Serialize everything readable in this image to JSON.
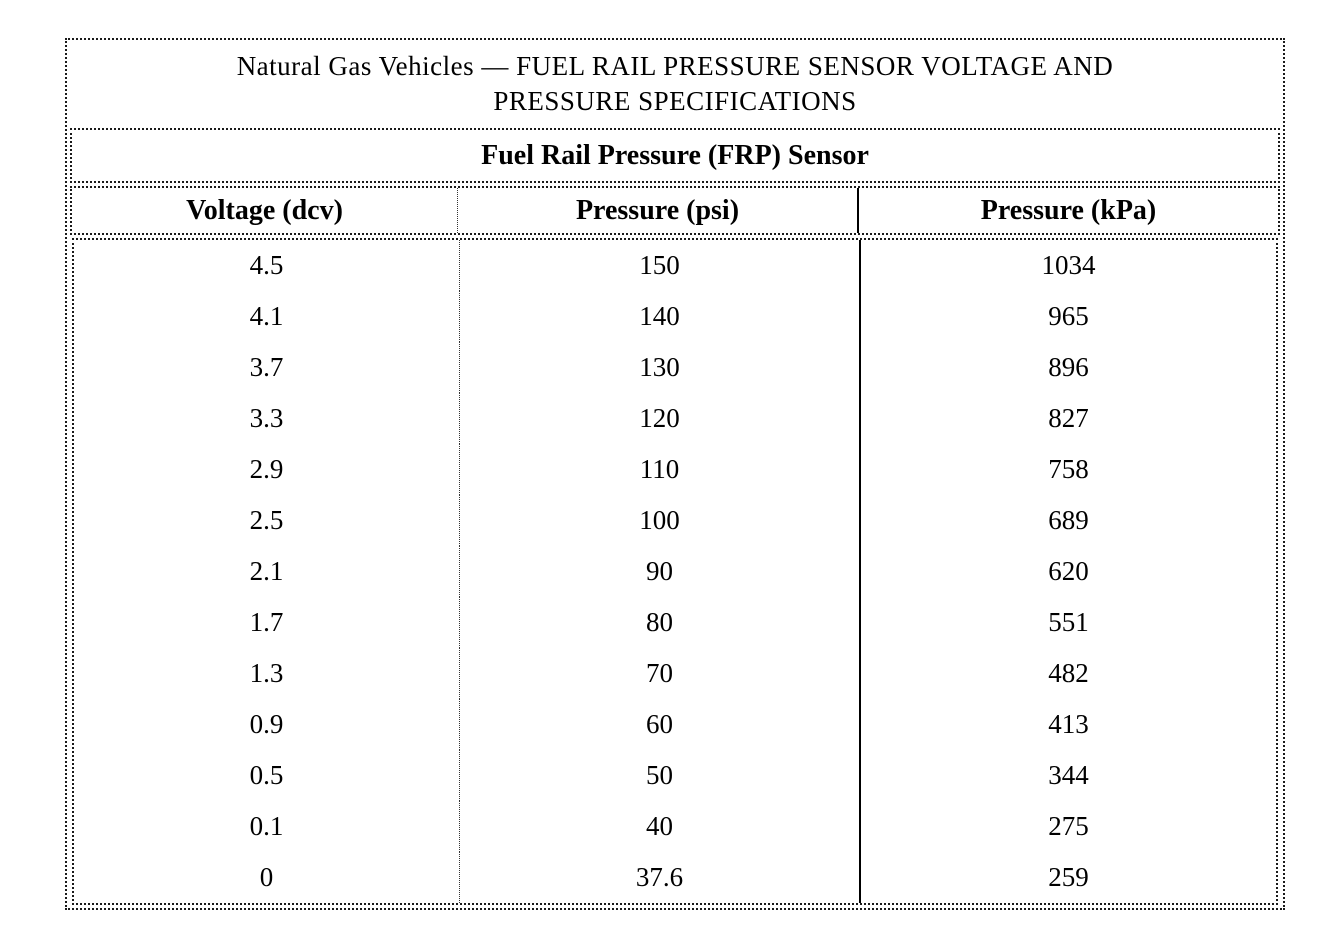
{
  "page": {
    "background_color": "#ffffff",
    "text_color": "#000000",
    "border_style": "dotted-scan-lines"
  },
  "table": {
    "title_line1": "Natural Gas Vehicles — FUEL RAIL PRESSURE SENSOR VOLTAGE AND",
    "title_line2": "PRESSURE SPECIFICATIONS",
    "subtitle": "Fuel Rail Pressure (FRP) Sensor",
    "columns": [
      "Voltage (dcv)",
      "Pressure (psi)",
      "Pressure (kPa)"
    ],
    "rows": [
      [
        "4.5",
        "150",
        "1034"
      ],
      [
        "4.1",
        "140",
        "965"
      ],
      [
        "3.7",
        "130",
        "896"
      ],
      [
        "3.3",
        "120",
        "827"
      ],
      [
        "2.9",
        "110",
        "758"
      ],
      [
        "2.5",
        "100",
        "689"
      ],
      [
        "2.1",
        "90",
        "620"
      ],
      [
        "1.7",
        "80",
        "551"
      ],
      [
        "1.3",
        "70",
        "482"
      ],
      [
        "0.9",
        "60",
        "413"
      ],
      [
        "0.5",
        "50",
        "344"
      ],
      [
        "0.1",
        "40",
        "275"
      ],
      [
        "0",
        "37.6",
        "259"
      ]
    ]
  }
}
